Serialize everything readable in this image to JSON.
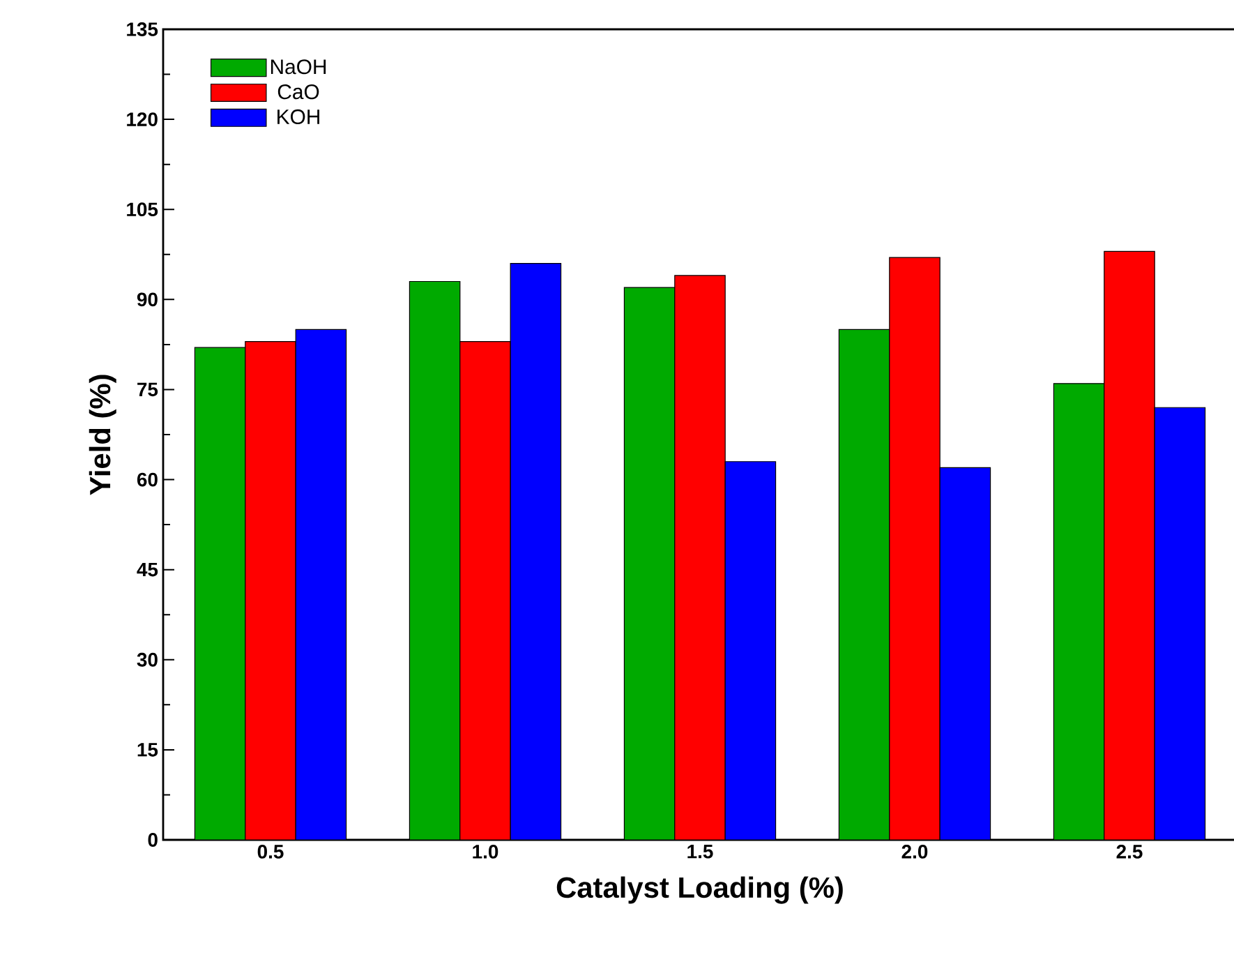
{
  "chart_data": {
    "type": "bar",
    "xlabel": "Catalyst Loading (%)",
    "ylabel": "Yield (%)",
    "categories": [
      "0.5",
      "1.0",
      "1.5",
      "2.0",
      "2.5"
    ],
    "series": [
      {
        "name": "NaOH",
        "color": "#00aa00",
        "values": [
          82,
          93,
          92,
          85,
          76
        ]
      },
      {
        "name": "CaO",
        "color": "#ff0000",
        "values": [
          83,
          83,
          94,
          97,
          98
        ]
      },
      {
        "name": "KOH",
        "color": "#0000ff",
        "values": [
          85,
          96,
          63,
          62,
          72
        ]
      }
    ],
    "ylim": [
      0,
      135
    ],
    "yticks": [
      0,
      15,
      30,
      45,
      60,
      75,
      90,
      105,
      120,
      135
    ],
    "grid": false,
    "legend": "top left"
  }
}
